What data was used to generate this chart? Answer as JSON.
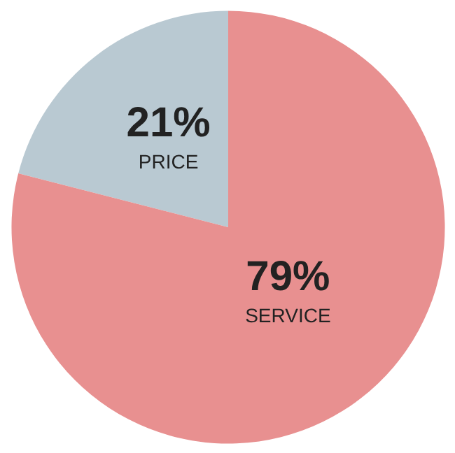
{
  "chart_data": {
    "type": "pie",
    "categories": [
      "PRICE",
      "SERVICE"
    ],
    "values": [
      21,
      79
    ],
    "colors": [
      "#b9c9d2",
      "#e89090"
    ],
    "value_labels": [
      "21%",
      "79%"
    ]
  }
}
